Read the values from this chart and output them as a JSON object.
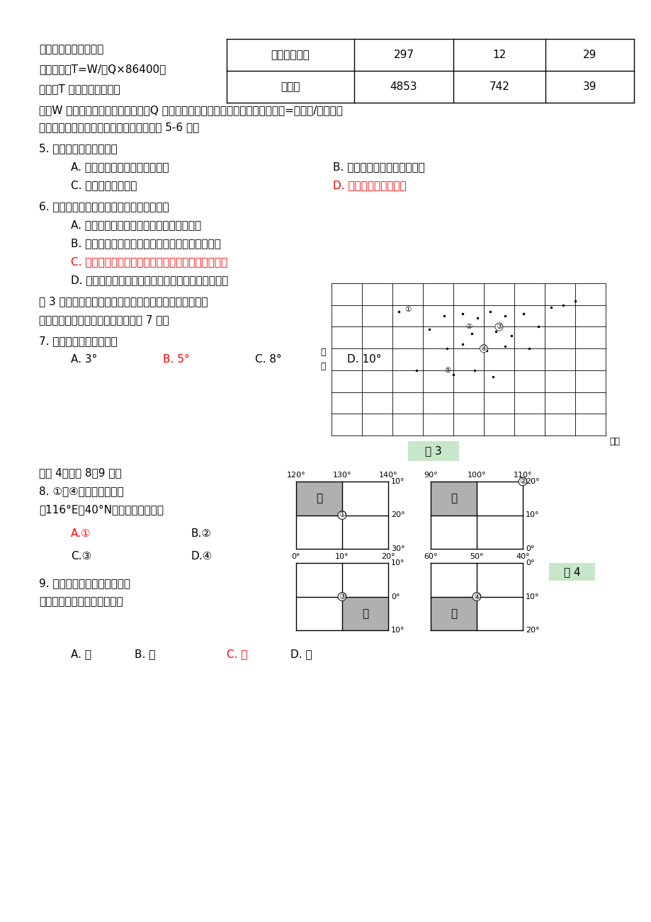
{
  "bg_color": "#ffffff",
  "table_rows": [
    [
      "滇池（昆明）",
      "297",
      "12",
      "29"
    ],
    [
      "青海湖",
      "4853",
      "742",
      "39"
    ]
  ],
  "para_texts": [
    "湖泊换水周期的长短可以用公式：T=W/（Q×86400）计算。T 为换水周期，以天计；W 为湖泊贮水量，以立方米计；Q 为年平均入湖流量，以立方米计。平均深度=贮水量/面积。下表所列我国部分湖泊的有关数据，据此完成 5-6 题。"
  ],
  "q5_text": "5. 分析表中的数据可知：",
  "q5_options": [
    {
      "text": "A. 湖泊面积越大，换水周期越长",
      "color": "#000000",
      "col": 0
    },
    {
      "text": "B. 贮水量越小，换水周期越短",
      "color": "#000000",
      "col": 1
    },
    {
      "text": "C. 太湖水循环最活跃",
      "color": "#000000",
      "col": 0
    },
    {
      "text": "D. 洞庭湖水体更新最快",
      "color": "#ff0000",
      "col": 1
    }
  ],
  "q6_text": "6. 对青海湖和洞庭湖的数据分析正确的是：",
  "q6_options": [
    {
      "text": "A. 青海湖面积大的主要原因是该湖贮水量大",
      "color": "#000000"
    },
    {
      "text": "B. 青海湖换水周期短的主要原因是该湖入湖水量小",
      "color": "#000000"
    },
    {
      "text": "C. 洞庭湖平均深度小的主要原因是该湖泥沙淤积严重",
      "color": "#ff0000"
    },
    {
      "text": "D. 洞庭湖入湖水量大的主要原因是该湖流域降水量小",
      "color": "#000000"
    }
  ],
  "q7_intro1": "图 3 是经纬网图层和中国省级行政中心图层的叠加图，图中经纬线间隔度数相等。读图，回答 7 题：",
  "q7_text": "7. 经纬网的纬线间距为：",
  "q7_options": [
    {
      "text": "A. 3°",
      "color": "#000000"
    },
    {
      "text": "B. 5°",
      "color": "#ff0000"
    },
    {
      "text": "C. 8°",
      "color": "#000000"
    },
    {
      "text": "D. 10°",
      "color": "#000000"
    }
  ],
  "q89_intro": "读图 4，回答 8～9 题：",
  "q8_text": "8. ①～④四地中位于北京（116°E，40°N）东南方向的是：",
  "q8_options": [
    {
      "text": "A.①",
      "color": "#ff0000"
    },
    {
      "text": "B.②",
      "color": "#000000"
    },
    {
      "text": "C.③",
      "color": "#000000"
    },
    {
      "text": "D.④",
      "color": "#000000"
    }
  ],
  "q9_text": "9. 四幅图中阴影部分所表示的经纬线方格，面积最大的是：",
  "q9_options": [
    {
      "text": "A. 甲",
      "color": "#000000"
    },
    {
      "text": "B. 乙",
      "color": "#000000"
    },
    {
      "text": "C. 丙",
      "color": "#ff0000"
    },
    {
      "text": "D. 丁",
      "color": "#000000"
    }
  ]
}
